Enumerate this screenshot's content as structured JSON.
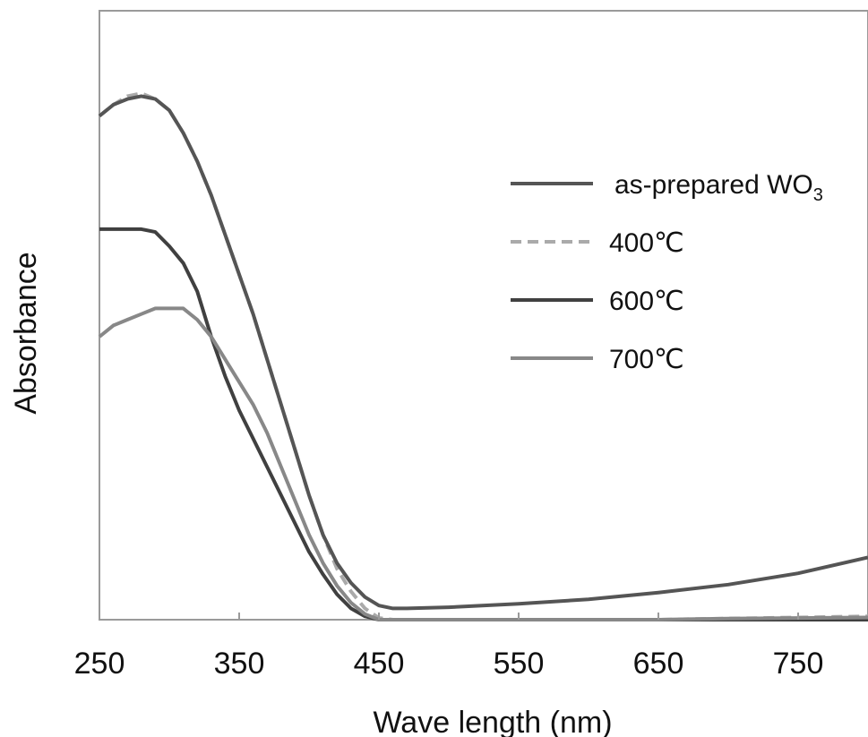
{
  "chart_data": {
    "type": "line",
    "title": "",
    "xlabel": "Wave length (nm)",
    "ylabel": "Absorbance",
    "xlim": [
      250,
      800
    ],
    "ylim": [
      0,
      1
    ],
    "x_ticks": [
      "250",
      "350",
      "450",
      "550",
      "650",
      "750"
    ],
    "y_ticks": [],
    "grid": false,
    "legend_position": "right",
    "series": [
      {
        "name": "as-prepared WO",
        "name_subscript": "3",
        "color": "#555555",
        "dash": "solid",
        "points": [
          [
            250,
            0.89
          ],
          [
            260,
            0.91
          ],
          [
            270,
            0.92
          ],
          [
            280,
            0.925
          ],
          [
            290,
            0.92
          ],
          [
            300,
            0.9
          ],
          [
            310,
            0.86
          ],
          [
            320,
            0.81
          ],
          [
            330,
            0.75
          ],
          [
            340,
            0.68
          ],
          [
            350,
            0.61
          ],
          [
            360,
            0.54
          ],
          [
            370,
            0.46
          ],
          [
            380,
            0.38
          ],
          [
            390,
            0.3
          ],
          [
            400,
            0.22
          ],
          [
            410,
            0.15
          ],
          [
            420,
            0.1
          ],
          [
            430,
            0.065
          ],
          [
            440,
            0.04
          ],
          [
            450,
            0.025
          ],
          [
            460,
            0.02
          ],
          [
            470,
            0.02
          ],
          [
            500,
            0.022
          ],
          [
            550,
            0.028
          ],
          [
            600,
            0.036
          ],
          [
            650,
            0.048
          ],
          [
            700,
            0.062
          ],
          [
            750,
            0.082
          ],
          [
            800,
            0.11
          ]
        ]
      },
      {
        "name": "400℃",
        "color": "#aaaaaa",
        "dash": "dashed",
        "points": [
          [
            250,
            0.89
          ],
          [
            260,
            0.91
          ],
          [
            270,
            0.925
          ],
          [
            280,
            0.93
          ],
          [
            290,
            0.92
          ],
          [
            300,
            0.9
          ],
          [
            310,
            0.86
          ],
          [
            320,
            0.81
          ],
          [
            330,
            0.75
          ],
          [
            340,
            0.68
          ],
          [
            350,
            0.61
          ],
          [
            360,
            0.54
          ],
          [
            370,
            0.46
          ],
          [
            380,
            0.38
          ],
          [
            390,
            0.3
          ],
          [
            400,
            0.22
          ],
          [
            410,
            0.15
          ],
          [
            420,
            0.09
          ],
          [
            430,
            0.05
          ],
          [
            440,
            0.02
          ],
          [
            450,
            0.003
          ],
          [
            460,
            0.0
          ],
          [
            500,
            0.0
          ],
          [
            550,
            0.0
          ],
          [
            600,
            0.0
          ],
          [
            650,
            0.0
          ],
          [
            700,
            0.002
          ],
          [
            750,
            0.004
          ],
          [
            800,
            0.006
          ]
        ]
      },
      {
        "name": "600℃",
        "color": "#404040",
        "dash": "solid",
        "points": [
          [
            250,
            0.69
          ],
          [
            260,
            0.69
          ],
          [
            270,
            0.69
          ],
          [
            280,
            0.69
          ],
          [
            290,
            0.685
          ],
          [
            300,
            0.66
          ],
          [
            310,
            0.63
          ],
          [
            320,
            0.58
          ],
          [
            330,
            0.5
          ],
          [
            340,
            0.43
          ],
          [
            350,
            0.37
          ],
          [
            360,
            0.32
          ],
          [
            370,
            0.27
          ],
          [
            380,
            0.22
          ],
          [
            390,
            0.17
          ],
          [
            400,
            0.12
          ],
          [
            410,
            0.08
          ],
          [
            420,
            0.045
          ],
          [
            430,
            0.02
          ],
          [
            440,
            0.006
          ],
          [
            450,
            0.0
          ],
          [
            500,
            0.0
          ],
          [
            550,
            0.0
          ],
          [
            600,
            0.0
          ],
          [
            650,
            0.0
          ],
          [
            700,
            0.0
          ],
          [
            750,
            0.0
          ],
          [
            800,
            0.0
          ]
        ]
      },
      {
        "name": "700℃",
        "color": "#888888",
        "dash": "solid",
        "points": [
          [
            250,
            0.5
          ],
          [
            260,
            0.52
          ],
          [
            270,
            0.53
          ],
          [
            280,
            0.54
          ],
          [
            290,
            0.55
          ],
          [
            300,
            0.55
          ],
          [
            310,
            0.55
          ],
          [
            320,
            0.53
          ],
          [
            330,
            0.5
          ],
          [
            340,
            0.46
          ],
          [
            350,
            0.42
          ],
          [
            360,
            0.38
          ],
          [
            370,
            0.33
          ],
          [
            380,
            0.27
          ],
          [
            390,
            0.21
          ],
          [
            400,
            0.15
          ],
          [
            410,
            0.1
          ],
          [
            420,
            0.06
          ],
          [
            430,
            0.03
          ],
          [
            440,
            0.01
          ],
          [
            450,
            0.0
          ],
          [
            500,
            0.0
          ],
          [
            550,
            0.0
          ],
          [
            600,
            0.0
          ],
          [
            650,
            0.0
          ],
          [
            700,
            0.002
          ],
          [
            750,
            0.003
          ],
          [
            800,
            0.004
          ]
        ]
      }
    ]
  }
}
